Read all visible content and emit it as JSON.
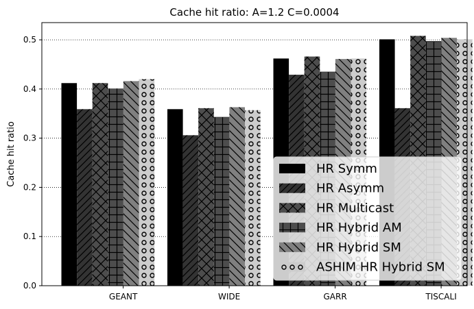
{
  "chart_data": {
    "type": "bar",
    "title": "Cache hit ratio: A=1.2 C=0.0004",
    "xlabel": "",
    "ylabel": "Cache hit ratio",
    "ylim": [
      0,
      0.535
    ],
    "yticks": [
      "0.0",
      "0.1",
      "0.2",
      "0.3",
      "0.4",
      "0.5"
    ],
    "grid": "horizontal dotted",
    "legend_placement": "bottom-right",
    "categories": [
      "GEANT",
      "WIDE",
      "GARR",
      "TISCALI"
    ],
    "series": [
      {
        "name": "HR Symm",
        "color": "#000000",
        "hatch": "none",
        "values": [
          0.412,
          0.359,
          0.462,
          0.501
        ]
      },
      {
        "name": "HR Asymm",
        "color": "#333333",
        "hatch": "diagonal",
        "values": [
          0.359,
          0.306,
          0.429,
          0.361
        ]
      },
      {
        "name": "HR Multicast",
        "color": "#4d4d4d",
        "hatch": "cross-diagonal",
        "values": [
          0.412,
          0.361,
          0.466,
          0.508
        ]
      },
      {
        "name": "HR Hybrid AM",
        "color": "#4d4d4d",
        "hatch": "grid",
        "values": [
          0.401,
          0.343,
          0.435,
          0.497
        ]
      },
      {
        "name": "HR Hybrid SM",
        "color": "#808080",
        "hatch": "back-diagonal",
        "values": [
          0.416,
          0.363,
          0.461,
          0.504
        ]
      },
      {
        "name": "ASHIM HR Hybrid SM",
        "color": "#cccccc",
        "hatch": "circles",
        "values": [
          0.42,
          0.357,
          0.462,
          0.501
        ]
      }
    ]
  }
}
